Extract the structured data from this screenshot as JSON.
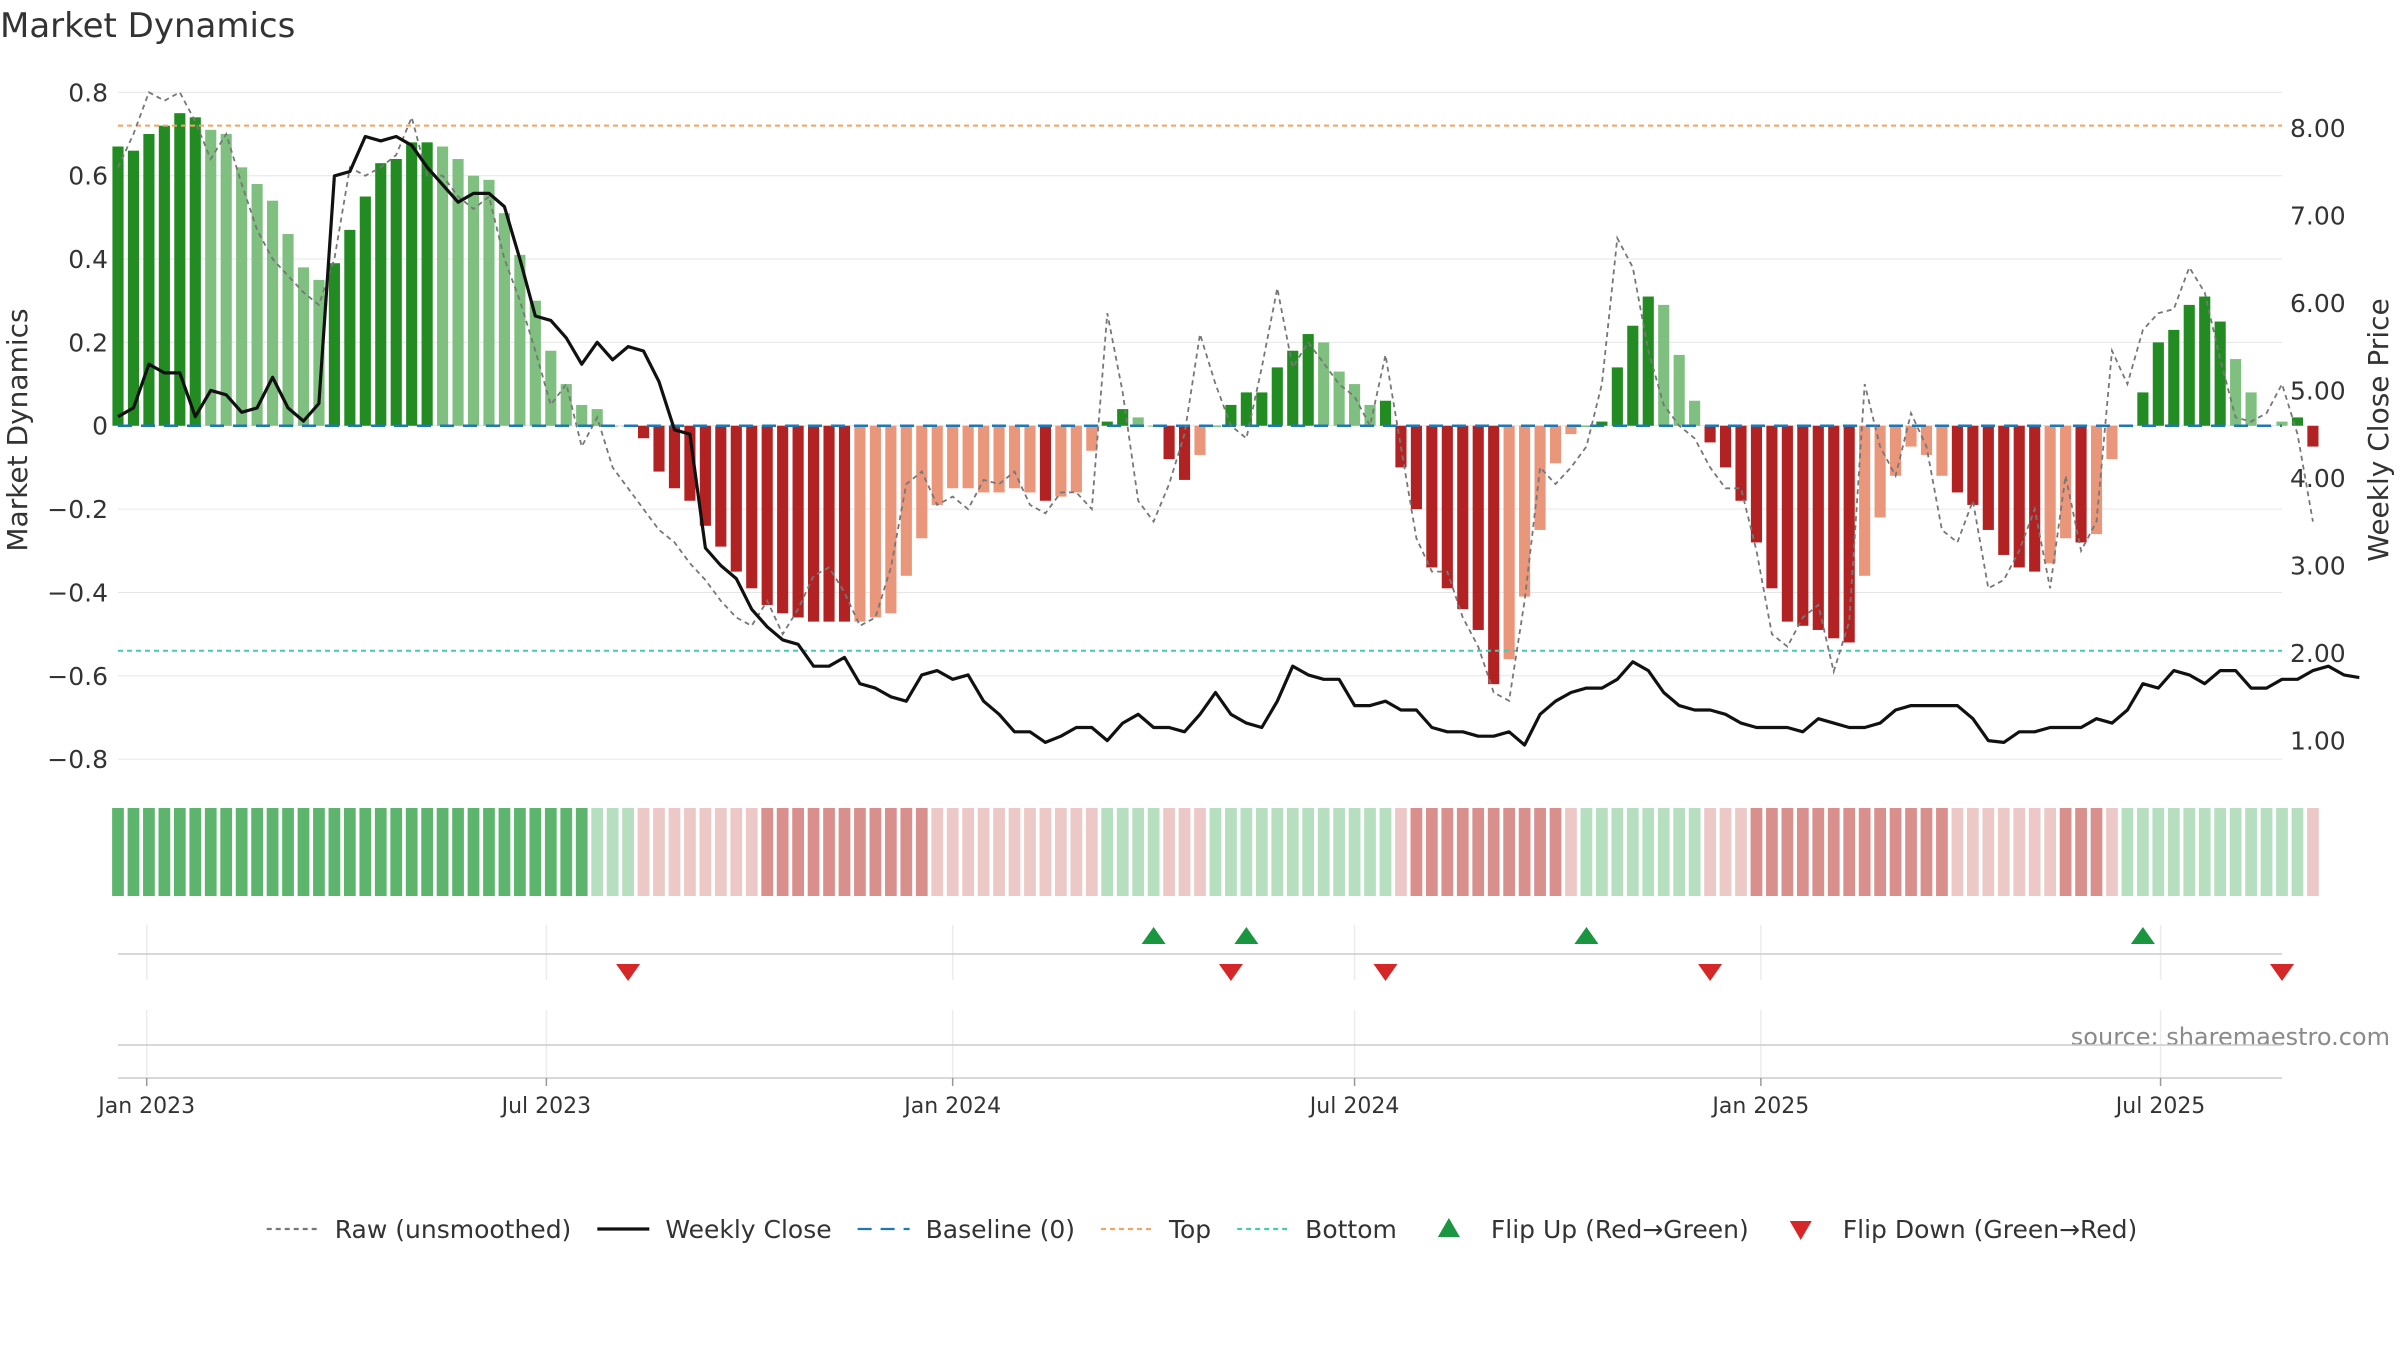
{
  "page_title": "Market Dynamics",
  "source_text": "source: sharemaestro.com",
  "colors": {
    "green_strong": "#228b22",
    "green_light": "#7fbf7f",
    "red_strong": "#b22222",
    "red_light": "#e9967a",
    "weekly_close": "#111111",
    "raw": "#777777",
    "baseline": "#1f77b4",
    "top": "#f4a460",
    "bottom": "#48c9b0",
    "flip_up": "#1a9641",
    "flip_down": "#d62728",
    "grid": "#e6e6e6"
  },
  "chart_data": {
    "type": "bar",
    "title": "Market Dynamics",
    "xlabel": "",
    "ylabel": "Market Dynamics",
    "ylabel_right": "Weekly Close Price",
    "ylim": [
      -0.85,
      0.82
    ],
    "ylim_right": [
      0.55,
      8.5
    ],
    "yticks": [
      0.8,
      0.6,
      0.4,
      0.2,
      0,
      -0.2,
      -0.4,
      -0.6,
      -0.8
    ],
    "ytick_labels": [
      "0.8",
      "0.6",
      "0.4",
      "0.2",
      "0",
      "−0.2",
      "−0.4",
      "−0.6",
      "−0.8"
    ],
    "yticks_right": [
      8,
      7,
      6,
      5,
      4,
      3,
      2,
      1
    ],
    "ytick_labels_right": [
      "8.00",
      "7.00",
      "6.00",
      "5.00",
      "4.00",
      "3.00",
      "2.00",
      "1.00"
    ],
    "x_range": [
      "2022-12-19",
      "2025-08-25"
    ],
    "x_ticks": [
      {
        "date": "2023-01-01",
        "label": "Jan 2023"
      },
      {
        "date": "2023-07-01",
        "label": "Jul 2023"
      },
      {
        "date": "2024-01-01",
        "label": "Jan 2024"
      },
      {
        "date": "2024-07-01",
        "label": "Jul 2024"
      },
      {
        "date": "2025-01-01",
        "label": "Jan 2025"
      },
      {
        "date": "2025-07-01",
        "label": "Jul 2025"
      }
    ],
    "start_date": "2022-12-19",
    "interval_days": 7,
    "market_dynamics": [
      0.67,
      0.66,
      0.7,
      0.72,
      0.75,
      0.74,
      0.71,
      0.7,
      0.62,
      0.58,
      0.54,
      0.46,
      0.38,
      0.35,
      0.39,
      0.47,
      0.55,
      0.63,
      0.64,
      0.68,
      0.68,
      0.67,
      0.64,
      0.6,
      0.59,
      0.51,
      0.41,
      0.3,
      0.18,
      0.1,
      0.05,
      0.04,
      0.0,
      0.0,
      -0.03,
      -0.11,
      -0.15,
      -0.18,
      -0.24,
      -0.29,
      -0.35,
      -0.39,
      -0.43,
      -0.45,
      -0.46,
      -0.47,
      -0.47,
      -0.47,
      -0.47,
      -0.46,
      -0.45,
      -0.36,
      -0.27,
      -0.19,
      -0.15,
      -0.15,
      -0.16,
      -0.16,
      -0.15,
      -0.16,
      -0.18,
      -0.17,
      -0.16,
      -0.06,
      0.01,
      0.04,
      0.02,
      0.0,
      -0.08,
      -0.13,
      -0.07,
      0.0,
      0.05,
      0.08,
      0.08,
      0.14,
      0.18,
      0.22,
      0.2,
      0.13,
      0.1,
      0.05,
      0.06,
      -0.1,
      -0.2,
      -0.34,
      -0.39,
      -0.44,
      -0.49,
      -0.62,
      -0.56,
      -0.41,
      -0.25,
      -0.09,
      -0.02,
      0.0,
      0.01,
      0.14,
      0.24,
      0.31,
      0.29,
      0.17,
      0.06,
      -0.04,
      -0.1,
      -0.18,
      -0.28,
      -0.39,
      -0.47,
      -0.48,
      -0.49,
      -0.51,
      -0.52,
      -0.36,
      -0.22,
      -0.12,
      -0.05,
      -0.07,
      -0.12,
      -0.16,
      -0.19,
      -0.25,
      -0.31,
      -0.34,
      -0.35,
      -0.33,
      -0.27,
      -0.28,
      -0.26,
      -0.08,
      0.0,
      0.08,
      0.2,
      0.23,
      0.29,
      0.31,
      0.25,
      0.16,
      0.08,
      0.0,
      0.01,
      0.02,
      -0.05
    ],
    "bar_shades": [
      1,
      1,
      1,
      1,
      1,
      1,
      0,
      0,
      0,
      0,
      0,
      0,
      0,
      0,
      1,
      1,
      1,
      1,
      1,
      1,
      1,
      0,
      0,
      0,
      0,
      0,
      0,
      0,
      0,
      0,
      0,
      0,
      0,
      0,
      1,
      1,
      1,
      1,
      1,
      1,
      1,
      1,
      1,
      1,
      1,
      1,
      1,
      1,
      0,
      0,
      0,
      0,
      0,
      0,
      0,
      0,
      0,
      0,
      0,
      0,
      1,
      0,
      0,
      0,
      1,
      1,
      0,
      0,
      1,
      1,
      0,
      1,
      1,
      1,
      1,
      1,
      1,
      1,
      0,
      0,
      0,
      0,
      1,
      1,
      1,
      1,
      1,
      1,
      1,
      1,
      0,
      0,
      0,
      0,
      0,
      1,
      1,
      1,
      1,
      1,
      0,
      0,
      0,
      1,
      1,
      1,
      1,
      1,
      1,
      1,
      1,
      1,
      1,
      0,
      0,
      0,
      0,
      0,
      0,
      1,
      1,
      1,
      1,
      1,
      1,
      0,
      0,
      1,
      0,
      0,
      0,
      1,
      1,
      1,
      1,
      1,
      1,
      0,
      0,
      0,
      0,
      1,
      1
    ],
    "weekly_close": [
      4.7,
      4.8,
      5.3,
      5.2,
      5.2,
      4.7,
      5.0,
      4.95,
      4.75,
      4.8,
      5.15,
      4.8,
      4.65,
      4.85,
      7.45,
      7.5,
      7.9,
      7.85,
      7.9,
      7.8,
      7.55,
      7.35,
      7.15,
      7.25,
      7.25,
      7.1,
      6.5,
      5.85,
      5.8,
      5.6,
      5.3,
      5.55,
      5.35,
      5.5,
      5.45,
      5.1,
      4.55,
      4.5,
      3.2,
      3.0,
      2.85,
      2.5,
      2.3,
      2.15,
      2.1,
      1.85,
      1.85,
      1.95,
      1.65,
      1.6,
      1.5,
      1.45,
      1.75,
      1.8,
      1.7,
      1.75,
      1.45,
      1.3,
      1.1,
      1.1,
      0.98,
      1.05,
      1.15,
      1.15,
      1.0,
      1.2,
      1.3,
      1.15,
      1.15,
      1.1,
      1.3,
      1.55,
      1.3,
      1.2,
      1.15,
      1.45,
      1.85,
      1.75,
      1.7,
      1.7,
      1.4,
      1.4,
      1.45,
      1.35,
      1.35,
      1.15,
      1.1,
      1.1,
      1.05,
      1.05,
      1.1,
      0.95,
      1.3,
      1.45,
      1.55,
      1.6,
      1.6,
      1.7,
      1.9,
      1.8,
      1.55,
      1.4,
      1.35,
      1.35,
      1.3,
      1.2,
      1.15,
      1.15,
      1.15,
      1.1,
      1.25,
      1.2,
      1.15,
      1.15,
      1.2,
      1.35,
      1.4,
      1.4,
      1.4,
      1.4,
      1.25,
      1.0,
      0.98,
      1.1,
      1.1,
      1.15,
      1.15,
      1.15,
      1.25,
      1.2,
      1.35,
      1.65,
      1.6,
      1.8,
      1.75,
      1.65,
      1.8,
      1.8,
      1.6,
      1.6,
      1.7,
      1.7,
      1.8,
      1.85,
      1.75,
      1.72
    ],
    "raw_unsmoothed": [
      0.62,
      0.7,
      0.8,
      0.78,
      0.8,
      0.73,
      0.64,
      0.7,
      0.58,
      0.47,
      0.4,
      0.36,
      0.32,
      0.29,
      0.4,
      0.62,
      0.6,
      0.62,
      0.65,
      0.74,
      0.6,
      0.6,
      0.55,
      0.52,
      0.55,
      0.4,
      0.3,
      0.18,
      0.05,
      0.1,
      -0.05,
      0.02,
      -0.1,
      -0.15,
      -0.2,
      -0.25,
      -0.28,
      -0.33,
      -0.37,
      -0.42,
      -0.46,
      -0.48,
      -0.42,
      -0.5,
      -0.44,
      -0.36,
      -0.34,
      -0.4,
      -0.48,
      -0.46,
      -0.34,
      -0.14,
      -0.11,
      -0.19,
      -0.17,
      -0.2,
      -0.13,
      -0.14,
      -0.11,
      -0.19,
      -0.21,
      -0.16,
      -0.16,
      -0.2,
      0.27,
      0.08,
      -0.18,
      -0.23,
      -0.14,
      -0.02,
      0.22,
      0.1,
      0.0,
      -0.03,
      0.14,
      0.33,
      0.14,
      0.2,
      0.15,
      0.1,
      0.07,
      0.0,
      0.17,
      -0.05,
      -0.27,
      -0.35,
      -0.35,
      -0.46,
      -0.53,
      -0.64,
      -0.66,
      -0.42,
      -0.1,
      -0.14,
      -0.1,
      -0.05,
      0.1,
      0.45,
      0.38,
      0.18,
      0.05,
      0.0,
      -0.03,
      -0.1,
      -0.15,
      -0.15,
      -0.3,
      -0.5,
      -0.53,
      -0.46,
      -0.43,
      -0.59,
      -0.47,
      0.1,
      -0.05,
      -0.12,
      0.03,
      -0.05,
      -0.25,
      -0.28,
      -0.18,
      -0.39,
      -0.37,
      -0.3,
      -0.2,
      -0.39,
      -0.12,
      -0.3,
      -0.23,
      0.18,
      0.1,
      0.23,
      0.27,
      0.28,
      0.38,
      0.32,
      0.16,
      0.02,
      0.01,
      0.03,
      0.1,
      -0.02,
      -0.23
    ],
    "baseline_value": 0,
    "top_value": 0.72,
    "bottom_value": -0.54,
    "regime_shades": [
      1,
      1,
      1,
      1,
      1,
      1,
      1,
      1,
      1,
      1,
      1,
      1,
      1,
      1,
      1,
      1,
      1,
      1,
      1,
      1,
      1,
      1,
      1,
      1,
      1,
      1,
      1,
      1,
      1,
      1,
      1,
      0,
      0,
      0,
      0,
      0,
      0,
      0,
      0,
      0,
      0,
      0,
      1,
      1,
      1,
      1,
      1,
      1,
      1,
      1,
      1,
      1,
      1,
      0,
      0,
      0,
      0,
      0,
      0,
      0,
      0,
      0,
      0,
      0,
      0,
      0,
      0,
      0,
      0,
      0,
      0,
      0,
      0,
      0,
      0,
      0,
      0,
      0,
      0,
      0,
      0,
      0,
      0,
      0,
      1,
      1,
      1,
      1,
      1,
      1,
      1,
      1,
      1,
      1,
      0,
      0,
      0,
      0,
      0,
      0,
      0,
      0,
      0,
      0,
      0,
      0,
      1,
      1,
      1,
      1,
      1,
      1,
      1,
      1,
      1,
      1,
      1,
      1,
      1,
      0,
      0,
      0,
      0,
      0,
      0,
      0,
      1,
      1,
      1,
      0,
      0,
      0,
      0,
      0,
      0,
      0,
      0,
      0,
      0,
      0,
      0,
      0,
      0,
      0
    ],
    "flip_up_dates": [
      "2024-04-01",
      "2024-05-13",
      "2024-10-14",
      "2025-06-23"
    ],
    "flip_down_dates": [
      "2023-08-07",
      "2024-05-06",
      "2024-07-15",
      "2024-12-09",
      "2025-08-25"
    ],
    "legend_placement": "bottom-center",
    "legend": [
      {
        "label": "Raw (unsmoothed)",
        "type": "dashed-line",
        "color": "#777777"
      },
      {
        "label": "Weekly Close",
        "type": "line",
        "color": "#111111"
      },
      {
        "label": "Baseline (0)",
        "type": "long-dashed-line",
        "color": "#1f77b4"
      },
      {
        "label": "Top",
        "type": "dashed-line",
        "color": "#f4a460"
      },
      {
        "label": "Bottom",
        "type": "dashed-line",
        "color": "#48c9b0"
      },
      {
        "label": "Flip Up (Red→Green)",
        "type": "triangle-up",
        "color": "#1a9641"
      },
      {
        "label": "Flip Down (Green→Red)",
        "type": "triangle-down",
        "color": "#d62728"
      }
    ],
    "grid": true
  }
}
